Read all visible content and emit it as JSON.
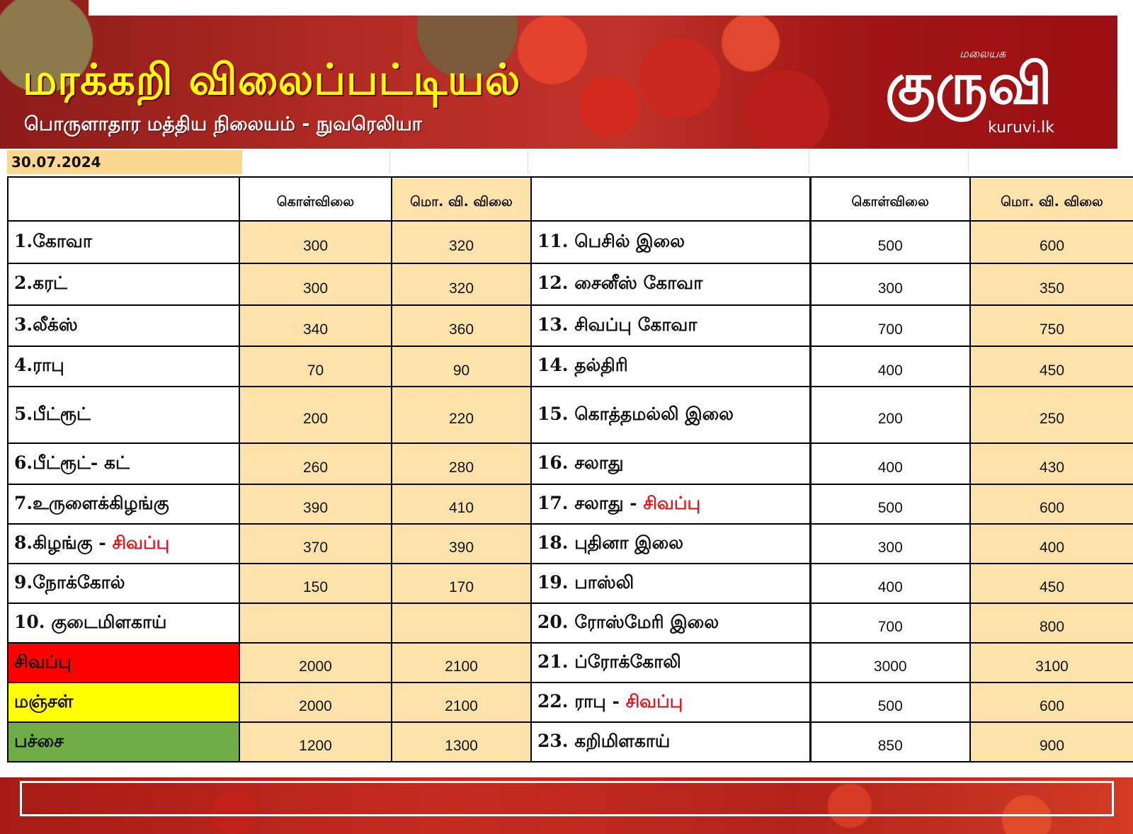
{
  "header": {
    "title": "மரக்கறி விலைப்பட்டியல்",
    "subtitle": "பொருளாதார மத்திய நிலையம் - நுவரெலியா",
    "logo_top": "மலையக",
    "logo_script": "குருவி",
    "logo_domain": "kuruvi.lk"
  },
  "date": "30.07.2024",
  "columns": {
    "wholesale": "கொள்விலை",
    "retail": "மொ. வி. விலை"
  },
  "rows": [
    {
      "l_name": "1.கோவா",
      "l_name_red": "",
      "l_w": "300",
      "l_r": "320",
      "r_name": "11. பெசில் இலை",
      "r_name_red": "",
      "r_w": "500",
      "r_r": "600"
    },
    {
      "l_name": "2.கரட்",
      "l_name_red": "",
      "l_w": "300",
      "l_r": "320",
      "r_name": "12. சைனீஸ் கோவா",
      "r_name_red": "",
      "r_w": "300",
      "r_r": "350"
    },
    {
      "l_name": "3.லீக்ஸ்",
      "l_name_red": "",
      "l_w": "340",
      "l_r": "360",
      "r_name": "13. சிவப்பு கோவா",
      "r_name_red": "",
      "r_w": "700",
      "r_r": "750"
    },
    {
      "l_name": "4.ராபு",
      "l_name_red": "",
      "l_w": "70",
      "l_r": "90",
      "r_name": "14. தல்திரி",
      "r_name_red": "",
      "r_w": "400",
      "r_r": "450"
    },
    {
      "l_name": "5.பீட்ரூட்",
      "l_name_red": "",
      "l_w": "200",
      "l_r": "220",
      "r_name": "15. கொத்தமல்லி இலை",
      "r_name_red": "",
      "r_w": "200",
      "r_r": "250"
    },
    {
      "l_name": "6.பீட்ரூட்- கட்",
      "l_name_red": "",
      "l_w": "260",
      "l_r": "280",
      "r_name": "16. சலாது",
      "r_name_red": "",
      "r_w": "400",
      "r_r": "430"
    },
    {
      "l_name": "7.உருளைக்கிழங்கு",
      "l_name_red": "",
      "l_w": "390",
      "l_r": "410",
      "r_name": "17. சலாது - ",
      "r_name_red": "சிவப்பு",
      "r_w": "500",
      "r_r": "600"
    },
    {
      "l_name": "8.கிழங்கு - ",
      "l_name_red": "சிவப்பு",
      "l_w": "370",
      "l_r": "390",
      "r_name": "18. புதினா இலை",
      "r_name_red": "",
      "r_w": "300",
      "r_r": "400"
    },
    {
      "l_name": "9.நோக்கோல்",
      "l_name_red": "",
      "l_w": "150",
      "l_r": "170",
      "r_name": "19. பாஸ்லி",
      "r_name_red": "",
      "r_w": "400",
      "r_r": "450"
    },
    {
      "l_name": "10. குடைமிளகாய்",
      "l_name_red": "",
      "l_w": "",
      "l_r": "",
      "r_name": "20. ரோஸ்மேரி இலை",
      "r_name_red": "",
      "r_w": "700",
      "r_r": "800"
    },
    {
      "l_name": "சிவப்பு",
      "l_name_red": "",
      "l_w": "2000",
      "l_r": "2100",
      "r_name": "21. ப்ரோக்கோலி",
      "r_name_red": "",
      "r_w": "3000",
      "r_r": "3100"
    },
    {
      "l_name": "மஞ்சள்",
      "l_name_red": "",
      "l_w": "2000",
      "l_r": "2100",
      "r_name": "22. ராபு - ",
      "r_name_red": "சிவப்பு",
      "r_w": "500",
      "r_r": "600"
    },
    {
      "l_name": "பச்சை",
      "l_name_red": "",
      "l_w": "1200",
      "l_r": "1300",
      "r_name": "23. கறிமிளகாய்",
      "r_name_red": "",
      "r_w": "850",
      "r_r": "900"
    }
  ],
  "colors": {
    "title": "#ffff00",
    "price_cell": "#fde3aa",
    "red_label": "#e8141b",
    "capsicum_red": "#ff0000",
    "capsicum_yellow": "#ffff00",
    "capsicum_green": "#6fad47"
  }
}
